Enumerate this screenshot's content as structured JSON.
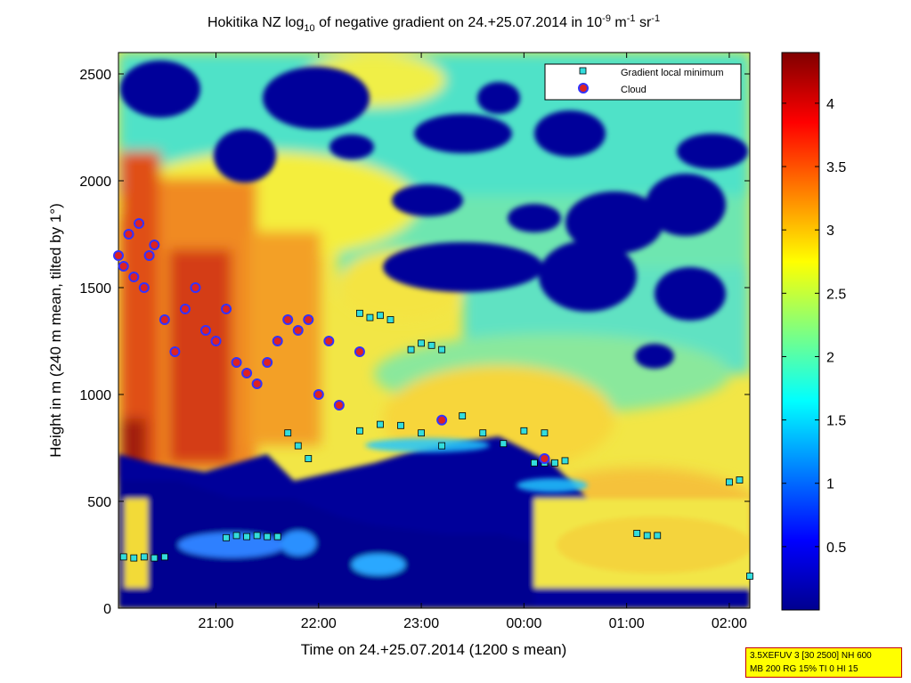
{
  "chart_data": {
    "type": "heatmap",
    "title_parts": {
      "prefix": "Hokitika NZ log",
      "sub": "10",
      "middle": " of negative gradient on 24.+25.07.2014 in 10",
      "exp1": "-9",
      "unit1": " m",
      "exp2": "-1",
      "unit2": " sr",
      "exp3": "-1"
    },
    "xlabel": "Time on 24.+25.07.2014 (1200 s mean)",
    "ylabel": "Height in m (240 m mean, tilted by 1°)",
    "x_ticks": [
      {
        "label": "21:00",
        "hours": 21.0
      },
      {
        "label": "22:00",
        "hours": 22.0
      },
      {
        "label": "23:00",
        "hours": 23.0
      },
      {
        "label": "00:00",
        "hours": 24.0
      },
      {
        "label": "01:00",
        "hours": 25.0
      },
      {
        "label": "02:00",
        "hours": 26.0
      }
    ],
    "xlim_hours": [
      20.05,
      26.2
    ],
    "y_ticks": [
      "0",
      "500",
      "1000",
      "1500",
      "2000",
      "2500"
    ],
    "ylim": [
      0,
      2600
    ],
    "colorbar": {
      "ticks": [
        "0.5",
        "1",
        "1.5",
        "2",
        "2.5",
        "3",
        "3.5",
        "4"
      ],
      "range": [
        0,
        4.4
      ],
      "colormap": "jet"
    },
    "legend": {
      "placement": "top-right",
      "entries": [
        {
          "label": "Gradient local minimum",
          "marker": "square",
          "color": "#33dddd"
        },
        {
          "label": "Cloud",
          "marker": "circle",
          "color": "#dd2222",
          "edge": "#3333ff"
        }
      ]
    },
    "gradient_minimum_series": [
      {
        "name": "lower-left",
        "x": [
          20.1,
          20.2,
          20.3,
          20.4,
          20.5
        ],
        "y": [
          240,
          235,
          240,
          235,
          240
        ]
      },
      {
        "name": "21h-low",
        "x": [
          21.1,
          21.2,
          21.3,
          21.4,
          21.5,
          21.6
        ],
        "y": [
          330,
          340,
          335,
          340,
          335,
          335
        ]
      },
      {
        "name": "22h-mid",
        "x": [
          21.7,
          21.8,
          21.9
        ],
        "y": [
          820,
          760,
          700
        ]
      },
      {
        "name": "22h-upper",
        "x": [
          22.4,
          22.5,
          22.6,
          22.7
        ],
        "y": [
          1380,
          1360,
          1370,
          1350
        ]
      },
      {
        "name": "23h-layer",
        "x": [
          22.4,
          22.6,
          22.8,
          23.0,
          23.2,
          23.4,
          23.6,
          23.8,
          24.0,
          24.2
        ],
        "y": [
          830,
          860,
          855,
          820,
          760,
          900,
          820,
          770,
          830,
          820
        ]
      },
      {
        "name": "23h-upper",
        "x": [
          22.9,
          23.0,
          23.1,
          23.2
        ],
        "y": [
          1210,
          1240,
          1230,
          1210
        ]
      },
      {
        "name": "00h-layer",
        "x": [
          24.1,
          24.2,
          24.3,
          24.4
        ],
        "y": [
          680,
          680,
          680,
          690
        ]
      },
      {
        "name": "01h-layer",
        "x": [
          25.1,
          25.2,
          25.3
        ],
        "y": [
          350,
          340,
          340
        ]
      },
      {
        "name": "02h-layer",
        "x": [
          26.0,
          26.1,
          26.2
        ],
        "y": [
          590,
          600,
          150
        ]
      }
    ],
    "cloud_points": [
      {
        "x": 20.05,
        "y": 1650
      },
      {
        "x": 20.1,
        "y": 1600
      },
      {
        "x": 20.15,
        "y": 1750
      },
      {
        "x": 20.2,
        "y": 1550
      },
      {
        "x": 20.25,
        "y": 1800
      },
      {
        "x": 20.3,
        "y": 1500
      },
      {
        "x": 20.35,
        "y": 1650
      },
      {
        "x": 20.4,
        "y": 1700
      },
      {
        "x": 20.5,
        "y": 1350
      },
      {
        "x": 20.6,
        "y": 1200
      },
      {
        "x": 20.7,
        "y": 1400
      },
      {
        "x": 20.8,
        "y": 1500
      },
      {
        "x": 20.9,
        "y": 1300
      },
      {
        "x": 21.0,
        "y": 1250
      },
      {
        "x": 21.1,
        "y": 1400
      },
      {
        "x": 21.2,
        "y": 1150
      },
      {
        "x": 21.3,
        "y": 1100
      },
      {
        "x": 21.4,
        "y": 1050
      },
      {
        "x": 21.5,
        "y": 1150
      },
      {
        "x": 21.6,
        "y": 1250
      },
      {
        "x": 21.7,
        "y": 1350
      },
      {
        "x": 21.8,
        "y": 1300
      },
      {
        "x": 21.9,
        "y": 1350
      },
      {
        "x": 22.0,
        "y": 1000
      },
      {
        "x": 22.1,
        "y": 1250
      },
      {
        "x": 22.2,
        "y": 950
      },
      {
        "x": 22.4,
        "y": 1200
      },
      {
        "x": 23.2,
        "y": 880
      },
      {
        "x": 24.2,
        "y": 700
      }
    ]
  },
  "info_box": {
    "line1": "3.5XEFUV 3 [30 2500] NH 600",
    "line2": "MB 200 RG 15% TI 0 HI 15"
  }
}
